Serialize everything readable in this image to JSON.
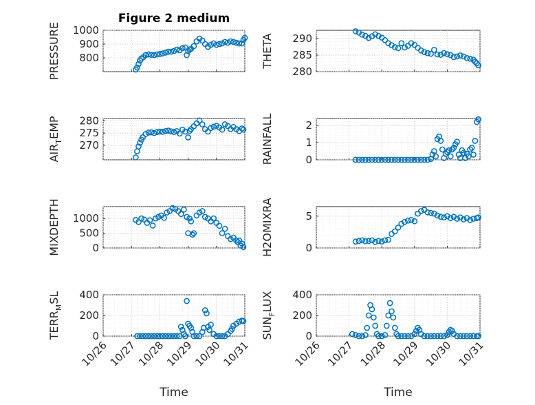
{
  "figure": {
    "title": "Figure 2 medium",
    "marker_color": "#0072BD"
  },
  "chart_data": [
    {
      "type": "scatter",
      "id": "pressure",
      "title": "Figure 2 medium",
      "ylabel": "PRESSURE",
      "xlabel": "",
      "ylim": [
        700,
        1000
      ],
      "yticks": [
        800,
        900,
        1000
      ],
      "xlim": [
        0,
        5
      ],
      "xticks": [
        0,
        1,
        2,
        3,
        4,
        5
      ],
      "xticklabels": [
        "10/26",
        "10/27",
        "10/28",
        "10/29",
        "10/30",
        "10/31"
      ],
      "show_xticklabels": false,
      "x": [
        1.15,
        1.2,
        1.25,
        1.3,
        1.35,
        1.42,
        1.5,
        1.6,
        1.7,
        1.8,
        1.9,
        2.0,
        2.1,
        2.2,
        2.3,
        2.4,
        2.5,
        2.6,
        2.7,
        2.8,
        2.9,
        2.95,
        3.0,
        3.05,
        3.1,
        3.2,
        3.3,
        3.4,
        3.5,
        3.6,
        3.7,
        3.8,
        3.9,
        4.0,
        4.1,
        4.2,
        4.3,
        4.4,
        4.5,
        4.6,
        4.7,
        4.8,
        4.9,
        4.95,
        5.0
      ],
      "y": [
        715,
        730,
        755,
        780,
        795,
        805,
        820,
        825,
        822,
        820,
        825,
        828,
        832,
        838,
        845,
        845,
        850,
        860,
        855,
        870,
        875,
        820,
        850,
        860,
        865,
        885,
        920,
        940,
        925,
        900,
        880,
        895,
        905,
        895,
        900,
        905,
        915,
        910,
        920,
        915,
        910,
        905,
        905,
        930,
        945
      ]
    },
    {
      "type": "scatter",
      "id": "theta",
      "title": "",
      "ylabel": "THETA",
      "xlabel": "",
      "ylim": [
        280,
        292.5
      ],
      "yticks": [
        280,
        285,
        290
      ],
      "xlim": [
        0,
        5
      ],
      "xticks": [
        0,
        1,
        2,
        3,
        4,
        5
      ],
      "xticklabels": [
        "10/26",
        "10/27",
        "10/28",
        "10/29",
        "10/30",
        "10/31"
      ],
      "show_xticklabels": false,
      "x": [
        1.2,
        1.3,
        1.4,
        1.5,
        1.6,
        1.7,
        1.8,
        1.9,
        2.0,
        2.1,
        2.2,
        2.3,
        2.4,
        2.5,
        2.6,
        2.7,
        2.8,
        2.9,
        3.0,
        3.1,
        3.2,
        3.3,
        3.4,
        3.5,
        3.6,
        3.7,
        3.8,
        3.9,
        4.0,
        4.1,
        4.2,
        4.3,
        4.4,
        4.5,
        4.6,
        4.7,
        4.8,
        4.85,
        4.9,
        4.95
      ],
      "y": [
        292.2,
        291.8,
        291.2,
        290.8,
        290.2,
        290.7,
        291.3,
        290.8,
        290.3,
        289.5,
        288.6,
        288.0,
        287.4,
        287.1,
        288.6,
        287.3,
        287.8,
        288.6,
        288.1,
        287.2,
        286.4,
        285.9,
        285.6,
        285.4,
        286.6,
        285.2,
        285.1,
        285.6,
        285.3,
        285.0,
        284.4,
        284.6,
        284.9,
        284.6,
        284.1,
        283.9,
        283.6,
        283.0,
        282.5,
        281.9
      ]
    },
    {
      "type": "scatter",
      "id": "air_temp",
      "title": "",
      "ylabel": "AIR_TEMP",
      "ylabel_main": "AIR",
      "ylabel_sub": "T",
      "ylabel_rest": "EMP",
      "xlabel": "",
      "ylim": [
        264,
        281
      ],
      "yticks": [
        270,
        275,
        280
      ],
      "xlim": [
        0,
        5
      ],
      "xticks": [
        0,
        1,
        2,
        3,
        4,
        5
      ],
      "xticklabels": [
        "10/26",
        "10/27",
        "10/28",
        "10/29",
        "10/30",
        "10/31"
      ],
      "show_xticklabels": false,
      "x": [
        1.15,
        1.2,
        1.25,
        1.3,
        1.35,
        1.4,
        1.5,
        1.6,
        1.7,
        1.8,
        1.9,
        2.0,
        2.1,
        2.2,
        2.3,
        2.4,
        2.5,
        2.6,
        2.7,
        2.8,
        2.9,
        3.0,
        3.05,
        3.1,
        3.2,
        3.3,
        3.4,
        3.5,
        3.6,
        3.7,
        3.8,
        3.9,
        4.0,
        4.1,
        4.2,
        4.3,
        4.4,
        4.5,
        4.6,
        4.7,
        4.8,
        4.9,
        4.95
      ],
      "y": [
        265.0,
        267.5,
        269.5,
        271.0,
        272.3,
        273.3,
        274.6,
        275.2,
        275.3,
        275.0,
        275.4,
        275.6,
        275.5,
        275.8,
        276.0,
        275.7,
        275.4,
        275.8,
        274.8,
        276.4,
        275.6,
        273.2,
        275.9,
        276.6,
        277.8,
        279.0,
        280.2,
        278.6,
        276.6,
        275.6,
        277.1,
        277.6,
        278.0,
        277.3,
        276.4,
        278.6,
        277.9,
        276.6,
        277.5,
        276.6,
        275.8,
        276.9,
        276.4
      ]
    },
    {
      "type": "scatter",
      "id": "rainfall",
      "title": "",
      "ylabel": "RAINFALL",
      "xlabel": "",
      "ylim": [
        0,
        2.4
      ],
      "yticks": [
        0,
        1,
        2
      ],
      "xlim": [
        0,
        5
      ],
      "xticks": [
        0,
        1,
        2,
        3,
        4,
        5
      ],
      "xticklabels": [
        "10/26",
        "10/27",
        "10/28",
        "10/29",
        "10/30",
        "10/31"
      ],
      "show_xticklabels": false,
      "x": [
        1.2,
        1.3,
        1.4,
        1.5,
        1.6,
        1.7,
        1.8,
        1.9,
        2.0,
        2.1,
        2.2,
        2.3,
        2.4,
        2.5,
        2.6,
        2.7,
        2.8,
        2.9,
        3.0,
        3.1,
        3.2,
        3.3,
        3.4,
        3.5,
        3.55,
        3.6,
        3.65,
        3.7,
        3.75,
        3.8,
        3.85,
        3.9,
        3.95,
        4.0,
        4.05,
        4.1,
        4.15,
        4.2,
        4.25,
        4.3,
        4.35,
        4.4,
        4.45,
        4.5,
        4.55,
        4.6,
        4.65,
        4.7,
        4.75,
        4.8,
        4.85,
        4.9,
        4.95
      ],
      "y": [
        0,
        0,
        0,
        0,
        0,
        0,
        0,
        0,
        0,
        0,
        0,
        0,
        0,
        0,
        0,
        0,
        0,
        0,
        0,
        0,
        0,
        0,
        0,
        0.05,
        0.3,
        0.5,
        0.2,
        1.2,
        1.35,
        1.1,
        0.6,
        0.1,
        0.35,
        0.45,
        0.55,
        0.2,
        0.6,
        0.7,
        0.9,
        1.05,
        0.3,
        0.1,
        0.55,
        0.4,
        0.1,
        0.35,
        0.2,
        0.6,
        0.7,
        0.3,
        1.1,
        2.2,
        2.35
      ]
    },
    {
      "type": "scatter",
      "id": "mixdepth",
      "title": "",
      "ylabel": "MIXDEPTH",
      "xlabel": "",
      "ylim": [
        0,
        1400
      ],
      "yticks": [
        0,
        500,
        1000
      ],
      "xlim": [
        0,
        5
      ],
      "xticks": [
        0,
        1,
        2,
        3,
        4,
        5
      ],
      "xticklabels": [
        "10/26",
        "10/27",
        "10/28",
        "10/29",
        "10/30",
        "10/31"
      ],
      "show_xticklabels": false,
      "x": [
        1.15,
        1.25,
        1.35,
        1.45,
        1.55,
        1.65,
        1.75,
        1.85,
        1.95,
        2.05,
        2.15,
        2.25,
        2.35,
        2.45,
        2.55,
        2.65,
        2.75,
        2.85,
        2.95,
        3.0,
        3.05,
        3.1,
        3.15,
        3.2,
        3.3,
        3.4,
        3.5,
        3.6,
        3.7,
        3.8,
        3.9,
        4.0,
        4.1,
        4.2,
        4.3,
        4.4,
        4.5,
        4.6,
        4.7,
        4.75,
        4.8,
        4.85,
        4.9,
        4.95
      ],
      "y": [
        950,
        880,
        1000,
        960,
        850,
        940,
        760,
        1000,
        1050,
        1100,
        1020,
        1200,
        1250,
        1350,
        1320,
        1250,
        1150,
        1300,
        1050,
        500,
        1000,
        900,
        450,
        500,
        1100,
        1200,
        1250,
        1050,
        1000,
        900,
        1000,
        850,
        750,
        500,
        650,
        400,
        300,
        350,
        250,
        200,
        250,
        80,
        150,
        30
      ]
    },
    {
      "type": "scatter",
      "id": "h2omixra",
      "title": "",
      "ylabel": "H2OMIXRA",
      "xlabel": "",
      "ylim": [
        0,
        6.5
      ],
      "yticks": [
        0,
        5
      ],
      "xlim": [
        0,
        5
      ],
      "xticks": [
        0,
        1,
        2,
        3,
        4,
        5
      ],
      "xticklabels": [
        "10/26",
        "10/27",
        "10/28",
        "10/29",
        "10/30",
        "10/31"
      ],
      "show_xticklabels": false,
      "x": [
        1.2,
        1.3,
        1.4,
        1.5,
        1.6,
        1.7,
        1.8,
        1.9,
        2.0,
        2.1,
        2.2,
        2.3,
        2.4,
        2.5,
        2.6,
        2.7,
        2.8,
        2.9,
        3.0,
        3.1,
        3.2,
        3.3,
        3.4,
        3.5,
        3.6,
        3.7,
        3.8,
        3.9,
        4.0,
        4.1,
        4.2,
        4.3,
        4.4,
        4.5,
        4.6,
        4.7,
        4.8,
        4.9,
        4.95
      ],
      "y": [
        1.0,
        1.1,
        1.2,
        1.05,
        1.1,
        1.2,
        0.95,
        1.1,
        1.0,
        1.2,
        1.3,
        2.2,
        2.6,
        3.2,
        3.8,
        4.1,
        4.3,
        4.4,
        4.2,
        5.4,
        5.8,
        6.0,
        5.6,
        5.5,
        5.4,
        5.1,
        4.9,
        4.8,
        5.0,
        4.7,
        4.9,
        4.6,
        4.8,
        4.5,
        4.7,
        4.4,
        4.6,
        4.7,
        4.8
      ]
    },
    {
      "type": "scatter",
      "id": "terr_msl",
      "title": "",
      "ylabel": "TERR_MSL",
      "ylabel_main": "TERR",
      "ylabel_sub": "M",
      "ylabel_rest": "SL",
      "xlabel": "Time",
      "ylim": [
        0,
        400
      ],
      "yticks": [
        0,
        200,
        400
      ],
      "xlim": [
        0,
        5
      ],
      "xticks": [
        0,
        1,
        2,
        3,
        4,
        5
      ],
      "xticklabels": [
        "10/26",
        "10/27",
        "10/28",
        "10/29",
        "10/30",
        "10/31"
      ],
      "show_xticklabels": true,
      "x": [
        1.2,
        1.3,
        1.4,
        1.5,
        1.6,
        1.7,
        1.8,
        1.9,
        2.0,
        2.1,
        2.2,
        2.3,
        2.4,
        2.5,
        2.6,
        2.7,
        2.75,
        2.8,
        2.85,
        2.9,
        2.95,
        3.0,
        3.05,
        3.1,
        3.15,
        3.2,
        3.3,
        3.4,
        3.5,
        3.55,
        3.6,
        3.65,
        3.7,
        3.75,
        3.8,
        3.9,
        4.0,
        4.1,
        4.2,
        4.3,
        4.4,
        4.5,
        4.55,
        4.6,
        4.7,
        4.8,
        4.9,
        4.95
      ],
      "y": [
        0,
        0,
        0,
        0,
        0,
        0,
        0,
        0,
        0,
        0,
        0,
        0,
        0,
        0,
        0,
        0,
        90,
        60,
        20,
        0,
        340,
        120,
        100,
        80,
        40,
        0,
        0,
        0,
        40,
        80,
        250,
        220,
        90,
        60,
        110,
        20,
        0,
        0,
        0,
        0,
        20,
        50,
        70,
        100,
        120,
        140,
        150,
        145
      ]
    },
    {
      "type": "scatter",
      "id": "sun_flux",
      "title": "",
      "ylabel": "SUN_FLUX",
      "ylabel_main": "SUN",
      "ylabel_sub": "F",
      "ylabel_rest": "LUX",
      "xlabel": "Time",
      "ylim": [
        0,
        400
      ],
      "yticks": [
        0,
        200,
        400
      ],
      "xlim": [
        0,
        5
      ],
      "xticks": [
        0,
        1,
        2,
        3,
        4,
        5
      ],
      "xticklabels": [
        "10/26",
        "10/27",
        "10/28",
        "10/29",
        "10/30",
        "10/31"
      ],
      "show_xticklabels": true,
      "x": [
        1.1,
        1.2,
        1.3,
        1.4,
        1.5,
        1.55,
        1.6,
        1.65,
        1.7,
        1.75,
        1.8,
        1.85,
        1.9,
        2.0,
        2.1,
        2.15,
        2.2,
        2.25,
        2.3,
        2.35,
        2.4,
        2.45,
        2.5,
        2.6,
        2.7,
        2.8,
        2.9,
        3.0,
        3.05,
        3.1,
        3.15,
        3.2,
        3.3,
        3.4,
        3.5,
        3.6,
        3.7,
        3.8,
        3.9,
        4.0,
        4.05,
        4.1,
        4.15,
        4.2,
        4.3,
        4.4,
        4.5,
        4.6,
        4.7,
        4.8,
        4.9,
        4.95
      ],
      "y": [
        20,
        10,
        0,
        0,
        10,
        80,
        200,
        300,
        260,
        180,
        100,
        20,
        0,
        0,
        10,
        100,
        200,
        320,
        240,
        180,
        80,
        20,
        0,
        0,
        0,
        0,
        0,
        20,
        50,
        80,
        60,
        20,
        0,
        0,
        0,
        0,
        0,
        0,
        0,
        10,
        40,
        60,
        50,
        20,
        0,
        0,
        0,
        0,
        0,
        0,
        0,
        0
      ]
    }
  ]
}
